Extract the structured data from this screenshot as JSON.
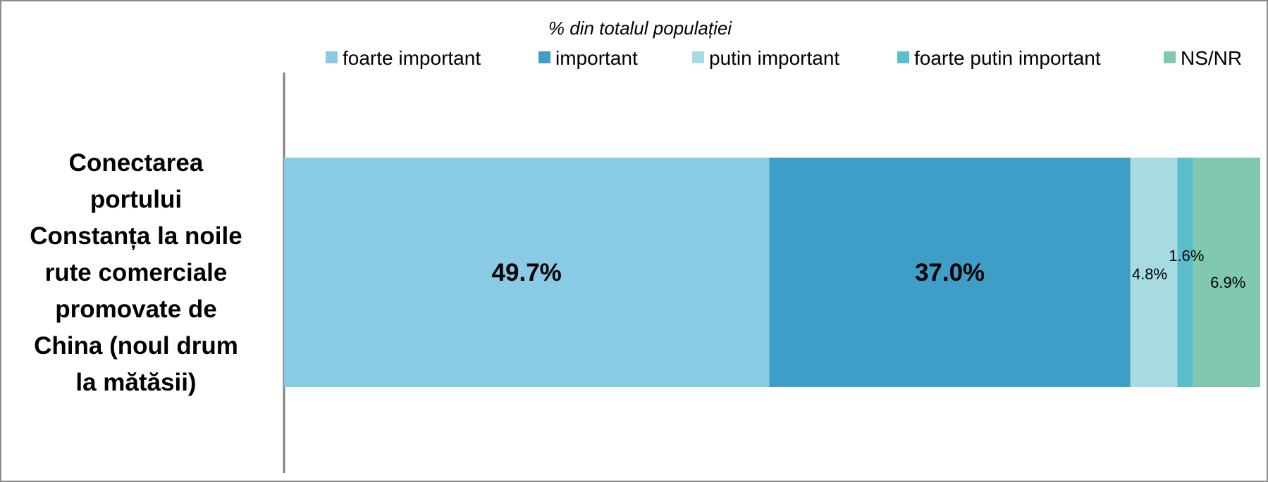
{
  "chart_data": {
    "type": "bar",
    "orientation": "horizontal",
    "stacked": true,
    "subtitle": "% din totalul populației",
    "categories": [
      "Conectarea portului Constanța la noile rute comerciale promovate de China (noul drum la mătăsii)"
    ],
    "category_label_lines": [
      "Conectarea",
      "portului",
      "Constanța la noile",
      "rute comerciale",
      "promovate de",
      "China (noul drum",
      "la mătăsii)"
    ],
    "series": [
      {
        "name": "foarte important",
        "values": [
          49.7
        ],
        "label": "49.7%",
        "color": "#89CAE4"
      },
      {
        "name": "important",
        "values": [
          37.0
        ],
        "label": "37.0%",
        "color": "#3E9EC7"
      },
      {
        "name": "putin important",
        "values": [
          4.8
        ],
        "label": "4.8%",
        "color": "#A6DBE2"
      },
      {
        "name": "foarte putin important",
        "values": [
          1.6
        ],
        "label": "1.6%",
        "color": "#5ABDCB"
      },
      {
        "name": "NS/NR",
        "values": [
          6.9
        ],
        "label": "6.9%",
        "color": "#80C8AE"
      }
    ],
    "xlim": [
      0,
      100
    ],
    "grid": false,
    "legend_position": "top"
  }
}
